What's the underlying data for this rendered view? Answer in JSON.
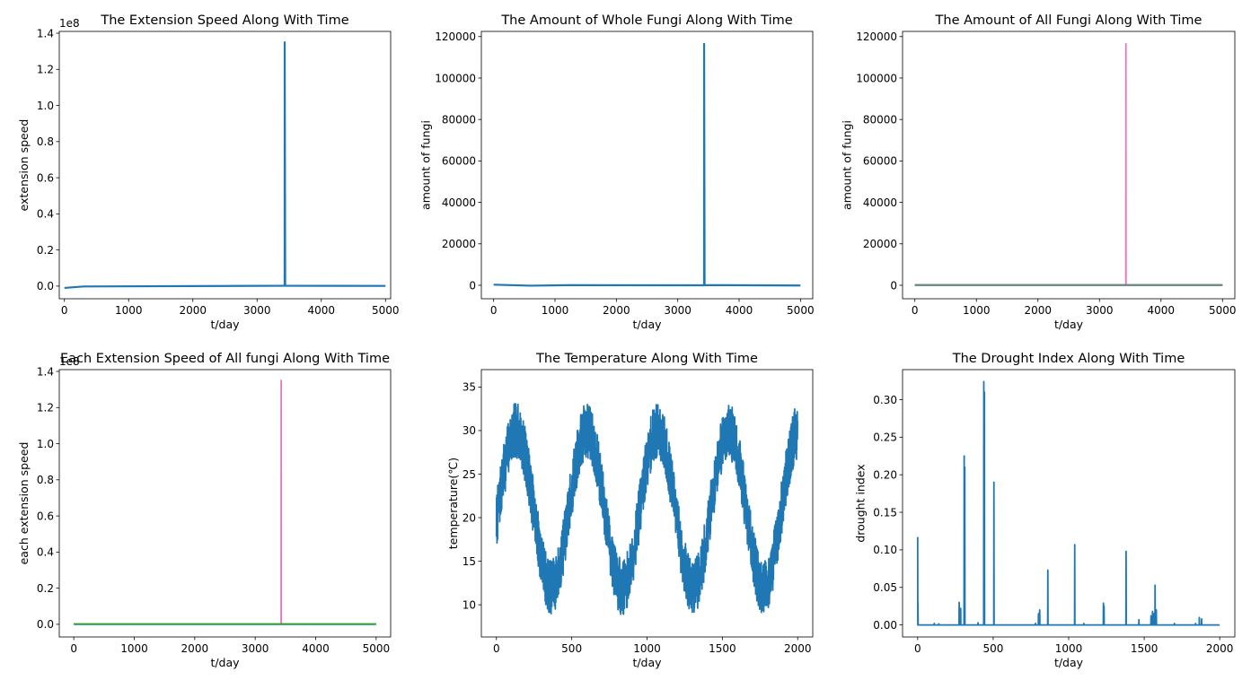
{
  "chart_data": [
    {
      "type": "line",
      "title": "The Extension Speed Along With Time",
      "xlabel": "t/day",
      "ylabel": "extension speed",
      "offset_text": "1e8",
      "xlim": [
        -80,
        5080
      ],
      "ylim": [
        -0.07,
        1.41
      ],
      "xticks": [
        0,
        1000,
        2000,
        3000,
        4000,
        5000
      ],
      "xtick_labels": [
        "0",
        "1000",
        "2000",
        "3000",
        "4000",
        "5000"
      ],
      "yticks": [
        0,
        0.2,
        0.4,
        0.6,
        0.8,
        1.0,
        1.2,
        1.4
      ],
      "ytick_labels": [
        "0.0",
        "0.2",
        "0.4",
        "0.6",
        "0.8",
        "1.0",
        "1.2",
        "1.4"
      ],
      "series": [
        {
          "color": "#1f77b4",
          "kind": "spike",
          "baseline": 0.0,
          "spike_x": 3430,
          "spike_y": 1.35
        }
      ]
    },
    {
      "type": "line",
      "title": "The Amount of Whole Fungi Along With Time",
      "xlabel": "t/day",
      "ylabel": "amount of fungi",
      "offset_text": "",
      "xlim": [
        -200,
        5200
      ],
      "ylim": [
        -6500,
        122500
      ],
      "xticks": [
        0,
        1000,
        2000,
        3000,
        4000,
        5000
      ],
      "xtick_labels": [
        "0",
        "1000",
        "2000",
        "3000",
        "4000",
        "5000"
      ],
      "yticks": [
        0,
        20000,
        40000,
        60000,
        80000,
        100000,
        120000
      ],
      "ytick_labels": [
        "0",
        "20000",
        "40000",
        "60000",
        "80000",
        "100000",
        "120000"
      ],
      "series": [
        {
          "color": "#1f77b4",
          "kind": "spike",
          "baseline": 300,
          "spike_x": 3430,
          "spike_y": 116500
        }
      ]
    },
    {
      "type": "line",
      "title": "The Amount of All Fungi Along With Time",
      "xlabel": "t/day",
      "ylabel": "amount of fungi",
      "offset_text": "",
      "xlim": [
        -200,
        5200
      ],
      "ylim": [
        -6500,
        122500
      ],
      "xticks": [
        0,
        1000,
        2000,
        3000,
        4000,
        5000
      ],
      "xtick_labels": [
        "0",
        "1000",
        "2000",
        "3000",
        "4000",
        "5000"
      ],
      "yticks": [
        0,
        20000,
        40000,
        60000,
        80000,
        100000,
        120000
      ],
      "ytick_labels": [
        "0",
        "20000",
        "40000",
        "60000",
        "80000",
        "100000",
        "120000"
      ],
      "series": [
        {
          "color": "#e377c2",
          "kind": "spike",
          "baseline": 0,
          "spike_x": 3430,
          "spike_y": 116500
        },
        {
          "color": "#17becf",
          "kind": "flat",
          "baseline": 0
        },
        {
          "color": "#2ca02c",
          "kind": "flat",
          "baseline": 200
        },
        {
          "color": "#7f7f7f",
          "kind": "flat",
          "baseline": 100
        }
      ]
    },
    {
      "type": "line",
      "title": "Each Extension Speed of All fungi Along With Time",
      "xlabel": "t/day",
      "ylabel": "each extension speed",
      "offset_text": "1e8",
      "xlim": [
        -240,
        5240
      ],
      "ylim": [
        -0.07,
        1.41
      ],
      "xticks": [
        0,
        1000,
        2000,
        3000,
        4000,
        5000
      ],
      "xtick_labels": [
        "0",
        "1000",
        "2000",
        "3000",
        "4000",
        "5000"
      ],
      "yticks": [
        0,
        0.2,
        0.4,
        0.6,
        0.8,
        1.0,
        1.2,
        1.4
      ],
      "ytick_labels": [
        "0.0",
        "0.2",
        "0.4",
        "0.6",
        "0.8",
        "1.0",
        "1.2",
        "1.4"
      ],
      "series": [
        {
          "color": "#e377c2",
          "kind": "spike",
          "baseline": 0.0,
          "spike_x": 3430,
          "spike_y": 1.35
        },
        {
          "color": "#17becf",
          "kind": "flat",
          "baseline": 0.0
        },
        {
          "color": "#2ca02c",
          "kind": "flat",
          "baseline": 0.002
        }
      ]
    },
    {
      "type": "line",
      "title": "The Temperature Along With Time",
      "xlabel": "t/day",
      "ylabel": "temperature(℃)",
      "offset_text": "",
      "xlim": [
        -100,
        2100
      ],
      "ylim": [
        6.3,
        37.0
      ],
      "xticks": [
        0,
        500,
        1000,
        1500,
        2000
      ],
      "xtick_labels": [
        "0",
        "500",
        "1000",
        "1500",
        "2000"
      ],
      "yticks": [
        10,
        15,
        20,
        25,
        30,
        35
      ],
      "ytick_labels": [
        "10",
        "15",
        "20",
        "25",
        "30",
        "35"
      ],
      "series": [
        {
          "color": "#1f77b4",
          "kind": "seasonal",
          "n": 2000,
          "mean": 21.0,
          "amplitude": 9.0,
          "period": 470,
          "peak_x": 600,
          "noise": 3.2,
          "min": 7.7,
          "max": 35.6
        }
      ]
    },
    {
      "type": "line",
      "title": "The Drought Index Along With Time",
      "xlabel": "t/day",
      "ylabel": "drought index",
      "offset_text": "",
      "xlim": [
        -100,
        2100
      ],
      "ylim": [
        -0.016,
        0.34
      ],
      "xticks": [
        0,
        500,
        1000,
        1500,
        2000
      ],
      "xtick_labels": [
        "0",
        "500",
        "1000",
        "1500",
        "2000"
      ],
      "yticks": [
        0,
        0.05,
        0.1,
        0.15,
        0.2,
        0.25,
        0.3
      ],
      "ytick_labels": [
        "0.00",
        "0.05",
        "0.10",
        "0.15",
        "0.20",
        "0.25",
        "0.30"
      ],
      "series": [
        {
          "color": "#1f77b4",
          "kind": "events",
          "n": 2000,
          "baseline": 0,
          "events": [
            {
              "x": 0,
              "y": 0.117
            },
            {
              "x": 2,
              "y": 0.03
            },
            {
              "x": 110,
              "y": 0.002
            },
            {
              "x": 140,
              "y": 0.0015
            },
            {
              "x": 275,
              "y": 0.03
            },
            {
              "x": 285,
              "y": 0.022
            },
            {
              "x": 308,
              "y": 0.225
            },
            {
              "x": 312,
              "y": 0.21
            },
            {
              "x": 400,
              "y": 0.003
            },
            {
              "x": 438,
              "y": 0.324
            },
            {
              "x": 442,
              "y": 0.31
            },
            {
              "x": 505,
              "y": 0.19
            },
            {
              "x": 780,
              "y": 0.002
            },
            {
              "x": 800,
              "y": 0.015
            },
            {
              "x": 808,
              "y": 0.02
            },
            {
              "x": 862,
              "y": 0.073
            },
            {
              "x": 1040,
              "y": 0.107
            },
            {
              "x": 1100,
              "y": 0.002
            },
            {
              "x": 1230,
              "y": 0.029
            },
            {
              "x": 1234,
              "y": 0.025
            },
            {
              "x": 1380,
              "y": 0.098
            },
            {
              "x": 1465,
              "y": 0.007
            },
            {
              "x": 1545,
              "y": 0.012
            },
            {
              "x": 1555,
              "y": 0.018
            },
            {
              "x": 1562,
              "y": 0.015
            },
            {
              "x": 1572,
              "y": 0.053
            },
            {
              "x": 1580,
              "y": 0.02
            },
            {
              "x": 1700,
              "y": 0.002
            },
            {
              "x": 1840,
              "y": 0.002
            },
            {
              "x": 1865,
              "y": 0.01
            },
            {
              "x": 1880,
              "y": 0.008
            }
          ]
        }
      ]
    }
  ]
}
